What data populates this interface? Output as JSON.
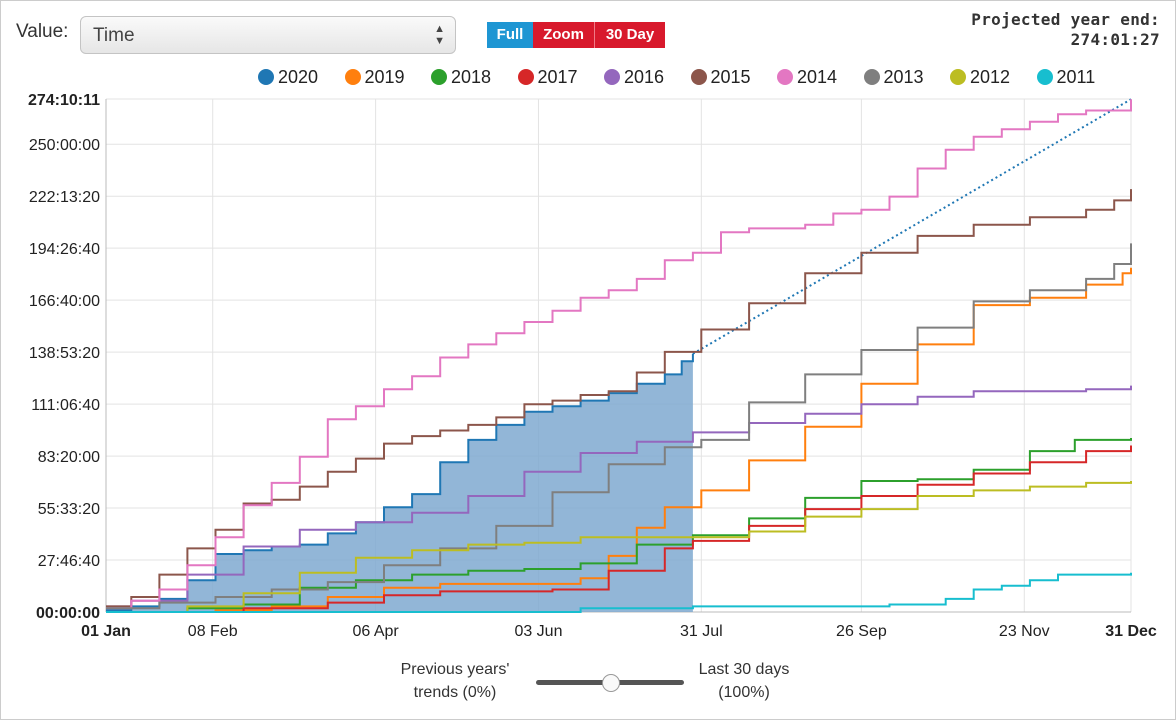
{
  "controls": {
    "value_label": "Value:",
    "value_selected": "Time",
    "buttons": [
      "Full",
      "Zoom",
      "30 Day"
    ]
  },
  "projection": {
    "label": "Projected year end:",
    "value": "274:01:27"
  },
  "slider": {
    "left_label_line1": "Previous years'",
    "left_label_line2": "trends (0%)",
    "right_label_line1": "Last 30 days",
    "right_label_line2": "(100%)",
    "value_percent": 100
  },
  "colors": {
    "2020": "#1f77b4",
    "2019": "#ff7f0e",
    "2018": "#2ca02c",
    "2017": "#d62728",
    "2016": "#9467bd",
    "2015": "#8c564b",
    "2014": "#e377c2",
    "2013": "#7f7f7f",
    "2012": "#bcbd22",
    "2011": "#17becf"
  },
  "chart_data": {
    "type": "line",
    "x_unit": "day of year",
    "x_ticks": [
      {
        "day": 1,
        "label": "01 Jan",
        "bold": true
      },
      {
        "day": 39,
        "label": "08 Feb"
      },
      {
        "day": 97,
        "label": "06 Apr"
      },
      {
        "day": 155,
        "label": "03 Jun"
      },
      {
        "day": 213,
        "label": "31 Jul"
      },
      {
        "day": 270,
        "label": "26 Sep"
      },
      {
        "day": 328,
        "label": "23 Nov"
      },
      {
        "day": 366,
        "label": "31 Dec",
        "bold": true
      }
    ],
    "y_unit": "hours",
    "ylim": [
      0,
      274.17
    ],
    "y_ticks": [
      {
        "h": 0,
        "label": "00:00:00",
        "bold": true
      },
      {
        "h": 27.78,
        "label": "27:46:40"
      },
      {
        "h": 55.56,
        "label": "55:33:20"
      },
      {
        "h": 83.33,
        "label": "83:20:00"
      },
      {
        "h": 111.11,
        "label": "111:06:40"
      },
      {
        "h": 138.89,
        "label": "138:53:20"
      },
      {
        "h": 166.67,
        "label": "166:40:00"
      },
      {
        "h": 194.44,
        "label": "194:26:40"
      },
      {
        "h": 222.22,
        "label": "222:13:20"
      },
      {
        "h": 250,
        "label": "250:00:00"
      },
      {
        "h": 274.17,
        "label": "274:10:11",
        "bold": true
      }
    ],
    "grid": true,
    "legend_position": "top",
    "series": [
      {
        "name": "2020",
        "filled": true,
        "points": [
          [
            1,
            1
          ],
          [
            10,
            3
          ],
          [
            20,
            7
          ],
          [
            30,
            17
          ],
          [
            40,
            31
          ],
          [
            50,
            33
          ],
          [
            60,
            35
          ],
          [
            70,
            36
          ],
          [
            80,
            42
          ],
          [
            90,
            48
          ],
          [
            100,
            56
          ],
          [
            110,
            63
          ],
          [
            120,
            80
          ],
          [
            130,
            92
          ],
          [
            140,
            100
          ],
          [
            150,
            107
          ],
          [
            160,
            110
          ],
          [
            170,
            113
          ],
          [
            180,
            117
          ],
          [
            190,
            122
          ],
          [
            200,
            127
          ],
          [
            206,
            134
          ],
          [
            210,
            138
          ]
        ]
      },
      {
        "name": "2020 projection",
        "dashed": true,
        "points": [
          [
            210,
            138
          ],
          [
            366,
            274.02
          ]
        ]
      },
      {
        "name": "2019",
        "points": [
          [
            1,
            0
          ],
          [
            40,
            1
          ],
          [
            60,
            3
          ],
          [
            80,
            8
          ],
          [
            100,
            13
          ],
          [
            120,
            15
          ],
          [
            140,
            15
          ],
          [
            170,
            18
          ],
          [
            180,
            30
          ],
          [
            190,
            45
          ],
          [
            200,
            56
          ],
          [
            213,
            65
          ],
          [
            230,
            81
          ],
          [
            250,
            99
          ],
          [
            270,
            122
          ],
          [
            290,
            143
          ],
          [
            310,
            164
          ],
          [
            330,
            168
          ],
          [
            350,
            175
          ],
          [
            363,
            181
          ],
          [
            366,
            184
          ]
        ]
      },
      {
        "name": "2018",
        "points": [
          [
            1,
            0
          ],
          [
            30,
            2
          ],
          [
            50,
            4
          ],
          [
            70,
            13
          ],
          [
            90,
            17
          ],
          [
            110,
            20
          ],
          [
            130,
            22
          ],
          [
            150,
            23
          ],
          [
            170,
            26
          ],
          [
            190,
            36
          ],
          [
            210,
            41
          ],
          [
            230,
            50
          ],
          [
            250,
            61
          ],
          [
            270,
            70
          ],
          [
            290,
            71
          ],
          [
            310,
            76
          ],
          [
            330,
            86
          ],
          [
            346,
            92
          ],
          [
            366,
            93
          ]
        ]
      },
      {
        "name": "2017",
        "points": [
          [
            1,
            0
          ],
          [
            50,
            2
          ],
          [
            80,
            5
          ],
          [
            100,
            9
          ],
          [
            120,
            11
          ],
          [
            140,
            11
          ],
          [
            160,
            12
          ],
          [
            180,
            22
          ],
          [
            200,
            34
          ],
          [
            210,
            38
          ],
          [
            230,
            46
          ],
          [
            250,
            55
          ],
          [
            270,
            62
          ],
          [
            290,
            68
          ],
          [
            310,
            74
          ],
          [
            330,
            80
          ],
          [
            350,
            86
          ],
          [
            366,
            89
          ]
        ]
      },
      {
        "name": "2016",
        "points": [
          [
            1,
            3
          ],
          [
            10,
            6
          ],
          [
            30,
            20
          ],
          [
            50,
            35
          ],
          [
            70,
            44
          ],
          [
            90,
            48
          ],
          [
            110,
            53
          ],
          [
            130,
            62
          ],
          [
            150,
            75
          ],
          [
            170,
            85
          ],
          [
            190,
            91
          ],
          [
            210,
            96
          ],
          [
            230,
            101
          ],
          [
            250,
            106
          ],
          [
            270,
            111
          ],
          [
            290,
            115
          ],
          [
            310,
            118
          ],
          [
            330,
            118
          ],
          [
            350,
            119
          ],
          [
            366,
            121
          ]
        ]
      },
      {
        "name": "2015",
        "points": [
          [
            1,
            3
          ],
          [
            10,
            8
          ],
          [
            20,
            20
          ],
          [
            30,
            34
          ],
          [
            40,
            44
          ],
          [
            50,
            58
          ],
          [
            60,
            60
          ],
          [
            70,
            67
          ],
          [
            80,
            75
          ],
          [
            90,
            82
          ],
          [
            100,
            90
          ],
          [
            110,
            94
          ],
          [
            120,
            97
          ],
          [
            130,
            100
          ],
          [
            140,
            104
          ],
          [
            150,
            111
          ],
          [
            160,
            113
          ],
          [
            170,
            116
          ],
          [
            180,
            118
          ],
          [
            190,
            128
          ],
          [
            200,
            139
          ],
          [
            213,
            151
          ],
          [
            230,
            165
          ],
          [
            250,
            181
          ],
          [
            270,
            192
          ],
          [
            290,
            201
          ],
          [
            310,
            207
          ],
          [
            330,
            211
          ],
          [
            350,
            215
          ],
          [
            360,
            220
          ],
          [
            366,
            226
          ]
        ]
      },
      {
        "name": "2014",
        "points": [
          [
            1,
            2
          ],
          [
            10,
            6
          ],
          [
            20,
            12
          ],
          [
            30,
            25
          ],
          [
            40,
            40
          ],
          [
            50,
            57
          ],
          [
            60,
            69
          ],
          [
            70,
            83
          ],
          [
            80,
            103
          ],
          [
            90,
            110
          ],
          [
            100,
            119
          ],
          [
            110,
            126
          ],
          [
            120,
            136
          ],
          [
            130,
            143
          ],
          [
            140,
            149
          ],
          [
            150,
            155
          ],
          [
            160,
            161
          ],
          [
            170,
            168
          ],
          [
            180,
            172
          ],
          [
            190,
            178
          ],
          [
            200,
            188
          ],
          [
            210,
            192
          ],
          [
            220,
            203
          ],
          [
            230,
            205
          ],
          [
            240,
            205
          ],
          [
            250,
            207
          ],
          [
            260,
            213
          ],
          [
            270,
            215
          ],
          [
            280,
            222
          ],
          [
            290,
            237
          ],
          [
            300,
            247
          ],
          [
            310,
            254
          ],
          [
            320,
            258
          ],
          [
            330,
            262
          ],
          [
            340,
            266
          ],
          [
            350,
            268
          ],
          [
            366,
            274
          ]
        ]
      },
      {
        "name": "2013",
        "points": [
          [
            1,
            2
          ],
          [
            20,
            5
          ],
          [
            40,
            8
          ],
          [
            60,
            12
          ],
          [
            80,
            16
          ],
          [
            100,
            25
          ],
          [
            120,
            34
          ],
          [
            140,
            46
          ],
          [
            160,
            64
          ],
          [
            180,
            79
          ],
          [
            200,
            88
          ],
          [
            213,
            92
          ],
          [
            230,
            112
          ],
          [
            250,
            127
          ],
          [
            270,
            140
          ],
          [
            290,
            152
          ],
          [
            310,
            166
          ],
          [
            330,
            172
          ],
          [
            350,
            178
          ],
          [
            360,
            186
          ],
          [
            366,
            197
          ]
        ]
      },
      {
        "name": "2012",
        "points": [
          [
            1,
            0
          ],
          [
            30,
            3
          ],
          [
            50,
            10
          ],
          [
            70,
            21
          ],
          [
            90,
            29
          ],
          [
            110,
            33
          ],
          [
            130,
            36
          ],
          [
            150,
            37
          ],
          [
            170,
            40
          ],
          [
            190,
            40
          ],
          [
            210,
            40
          ],
          [
            230,
            43
          ],
          [
            250,
            51
          ],
          [
            270,
            55
          ],
          [
            290,
            62
          ],
          [
            310,
            65
          ],
          [
            330,
            67
          ],
          [
            350,
            69
          ],
          [
            366,
            70
          ]
        ]
      },
      {
        "name": "2011",
        "points": [
          [
            1,
            0
          ],
          [
            150,
            0
          ],
          [
            170,
            2
          ],
          [
            210,
            3
          ],
          [
            270,
            3
          ],
          [
            280,
            4
          ],
          [
            300,
            7
          ],
          [
            310,
            12
          ],
          [
            320,
            14
          ],
          [
            330,
            17
          ],
          [
            340,
            20
          ],
          [
            350,
            20
          ],
          [
            366,
            21
          ]
        ]
      }
    ]
  }
}
